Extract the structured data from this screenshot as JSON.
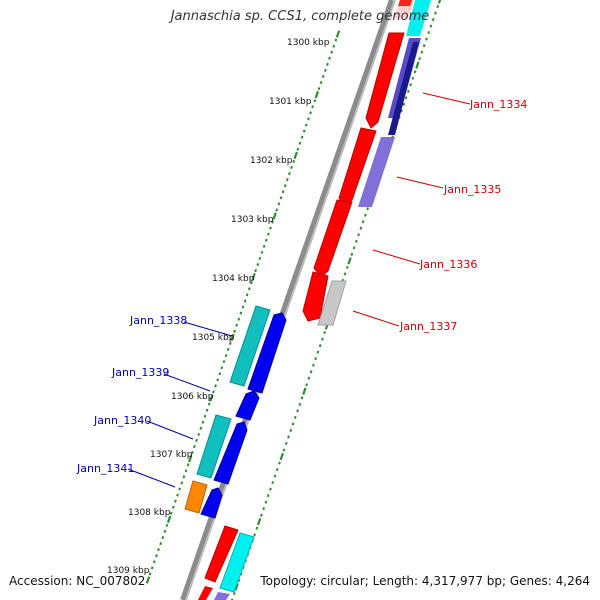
{
  "title": "Jannaschia sp. CCS1, complete genome",
  "accession": "Accession: NC_007802",
  "summary": "Topology: circular; Length: 4,317,977 bp; Genes: 4,264",
  "colors": {
    "backbone": "#8c8c8c",
    "tick": "#2e8b2e",
    "label_red": "#cc0000",
    "label_blue": "#0000aa",
    "red_gene": "#ff0000",
    "cyan_gene": "#00d4d4",
    "teal_gene": "#11bfbf",
    "blue_gene": "#0000ee",
    "orange_gene": "#ff8800",
    "purple_gene": "#7a6ad8",
    "navy_gene": "#1a1a8a",
    "gray_gene": "#c8c8c8"
  },
  "kbp_labels": [
    {
      "text": "1300 kbp"
    },
    {
      "text": "1301 kbp"
    },
    {
      "text": "1302 kbp"
    },
    {
      "text": "1303 kbp"
    },
    {
      "text": "1304 kbp"
    },
    {
      "text": "1305 kbp"
    },
    {
      "text": "1306 kbp"
    },
    {
      "text": "1307 kbp"
    },
    {
      "text": "1308 kbp"
    },
    {
      "text": "1309 kbp"
    }
  ],
  "gene_labels": {
    "jann_1334": "Jann_1334",
    "jann_1335": "Jann_1335",
    "jann_1336": "Jann_1336",
    "jann_1337": "Jann_1337",
    "jann_1338": "Jann_1338",
    "jann_1339": "Jann_1339",
    "jann_1340": "Jann_1340",
    "jann_1341": "Jann_1341"
  }
}
